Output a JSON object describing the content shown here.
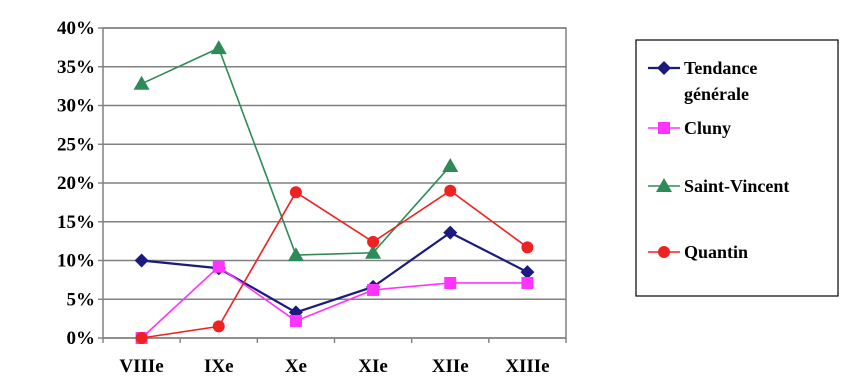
{
  "chart_data": {
    "type": "line",
    "categories": [
      "VIIIe",
      "IXe",
      "Xe",
      "XIe",
      "XIIe",
      "XIIIe"
    ],
    "ylim": [
      0,
      40
    ],
    "yticks": [
      "0%",
      "5%",
      "10%",
      "15%",
      "20%",
      "25%",
      "30%",
      "35%",
      "40%"
    ],
    "grid": true,
    "legend_position": "right",
    "series": [
      {
        "name": "Tendance générale",
        "name_lines": [
          "Tendance",
          "générale"
        ],
        "color": "#1a1a80",
        "marker": "diamond",
        "values": [
          10.0,
          9.0,
          3.3,
          6.6,
          13.6,
          8.5
        ]
      },
      {
        "name": "Cluny",
        "name_lines": [
          "Cluny"
        ],
        "color": "#ff33ff",
        "marker": "square",
        "values": [
          0.0,
          9.2,
          2.2,
          6.2,
          7.1,
          7.1
        ]
      },
      {
        "name": "Saint-Vincent",
        "name_lines": [
          "Saint-Vincent"
        ],
        "color": "#2e8b57",
        "marker": "triangle",
        "values": [
          32.8,
          37.4,
          10.7,
          11.0,
          22.2,
          null
        ]
      },
      {
        "name": "Quantin",
        "name_lines": [
          "Quantin"
        ],
        "color": "#ee2222",
        "marker": "circle",
        "values": [
          0.0,
          1.5,
          18.8,
          12.4,
          19.0,
          11.7
        ]
      }
    ]
  }
}
